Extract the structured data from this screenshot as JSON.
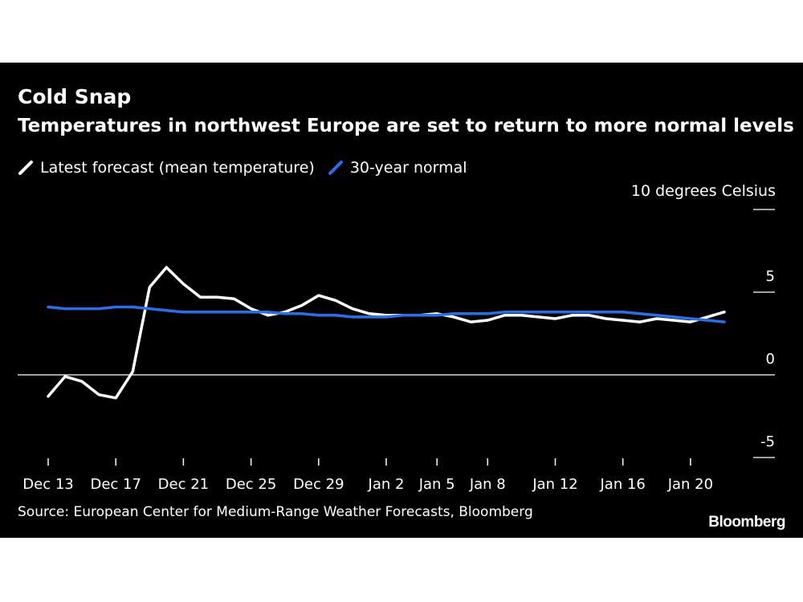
{
  "chart_data": {
    "type": "line",
    "title": "Cold Snap",
    "subtitle": "Temperatures in northwest Europe are set to return to more normal levels",
    "unit_label": "10 degrees Celsius",
    "source": "Source: European Center for Medium-Range Weather Forecasts, Bloomberg",
    "brand": "Bloomberg",
    "x_tick_labels": [
      "Dec 13",
      "Dec 17",
      "Dec 21",
      "Dec 25",
      "Dec 29",
      "Jan 2",
      "Jan 5",
      "Jan 8",
      "Jan 12",
      "Jan 16",
      "Jan 20"
    ],
    "x_tick_day_index": [
      0,
      4,
      8,
      12,
      16,
      20,
      23,
      26,
      30,
      34,
      38
    ],
    "y_ticks": [
      10,
      5,
      0,
      -5
    ],
    "y_tick_labels": [
      "",
      "5",
      "0",
      "-5"
    ],
    "ylim": [
      -5,
      10
    ],
    "x": [
      "Dec 13",
      "Dec 14",
      "Dec 15",
      "Dec 16",
      "Dec 17",
      "Dec 18",
      "Dec 19",
      "Dec 20",
      "Dec 21",
      "Dec 22",
      "Dec 23",
      "Dec 24",
      "Dec 25",
      "Dec 26",
      "Dec 27",
      "Dec 28",
      "Dec 29",
      "Dec 30",
      "Dec 31",
      "Jan 1",
      "Jan 2",
      "Jan 3",
      "Jan 4",
      "Jan 5",
      "Jan 6",
      "Jan 7",
      "Jan 8",
      "Jan 9",
      "Jan 10",
      "Jan 11",
      "Jan 12",
      "Jan 13",
      "Jan 14",
      "Jan 15",
      "Jan 16",
      "Jan 17",
      "Jan 18",
      "Jan 19",
      "Jan 20",
      "Jan 21",
      "Jan 22"
    ],
    "series": [
      {
        "name": "Latest forecast (mean temperature)",
        "color": "#ffffff",
        "values": [
          -1.3,
          -0.1,
          -0.4,
          -1.2,
          -1.4,
          0.2,
          5.3,
          6.5,
          5.5,
          4.7,
          4.7,
          4.6,
          4.0,
          3.6,
          3.8,
          4.2,
          4.8,
          4.5,
          4.0,
          3.7,
          3.6,
          3.6,
          3.6,
          3.7,
          3.5,
          3.2,
          3.3,
          3.6,
          3.6,
          3.5,
          3.4,
          3.6,
          3.6,
          3.4,
          3.3,
          3.2,
          3.4,
          3.3,
          3.2,
          3.5,
          3.8
        ]
      },
      {
        "name": "30-year normal",
        "color": "#2a6fe8",
        "values": [
          4.1,
          4.0,
          4.0,
          4.0,
          4.1,
          4.1,
          4.0,
          3.9,
          3.8,
          3.8,
          3.8,
          3.8,
          3.8,
          3.8,
          3.7,
          3.7,
          3.6,
          3.6,
          3.5,
          3.5,
          3.5,
          3.6,
          3.6,
          3.6,
          3.7,
          3.7,
          3.7,
          3.8,
          3.8,
          3.8,
          3.8,
          3.8,
          3.8,
          3.8,
          3.8,
          3.7,
          3.6,
          3.5,
          3.4,
          3.3,
          3.2
        ]
      }
    ],
    "grid": false,
    "zero_line": true,
    "legend_position": "top-left"
  }
}
